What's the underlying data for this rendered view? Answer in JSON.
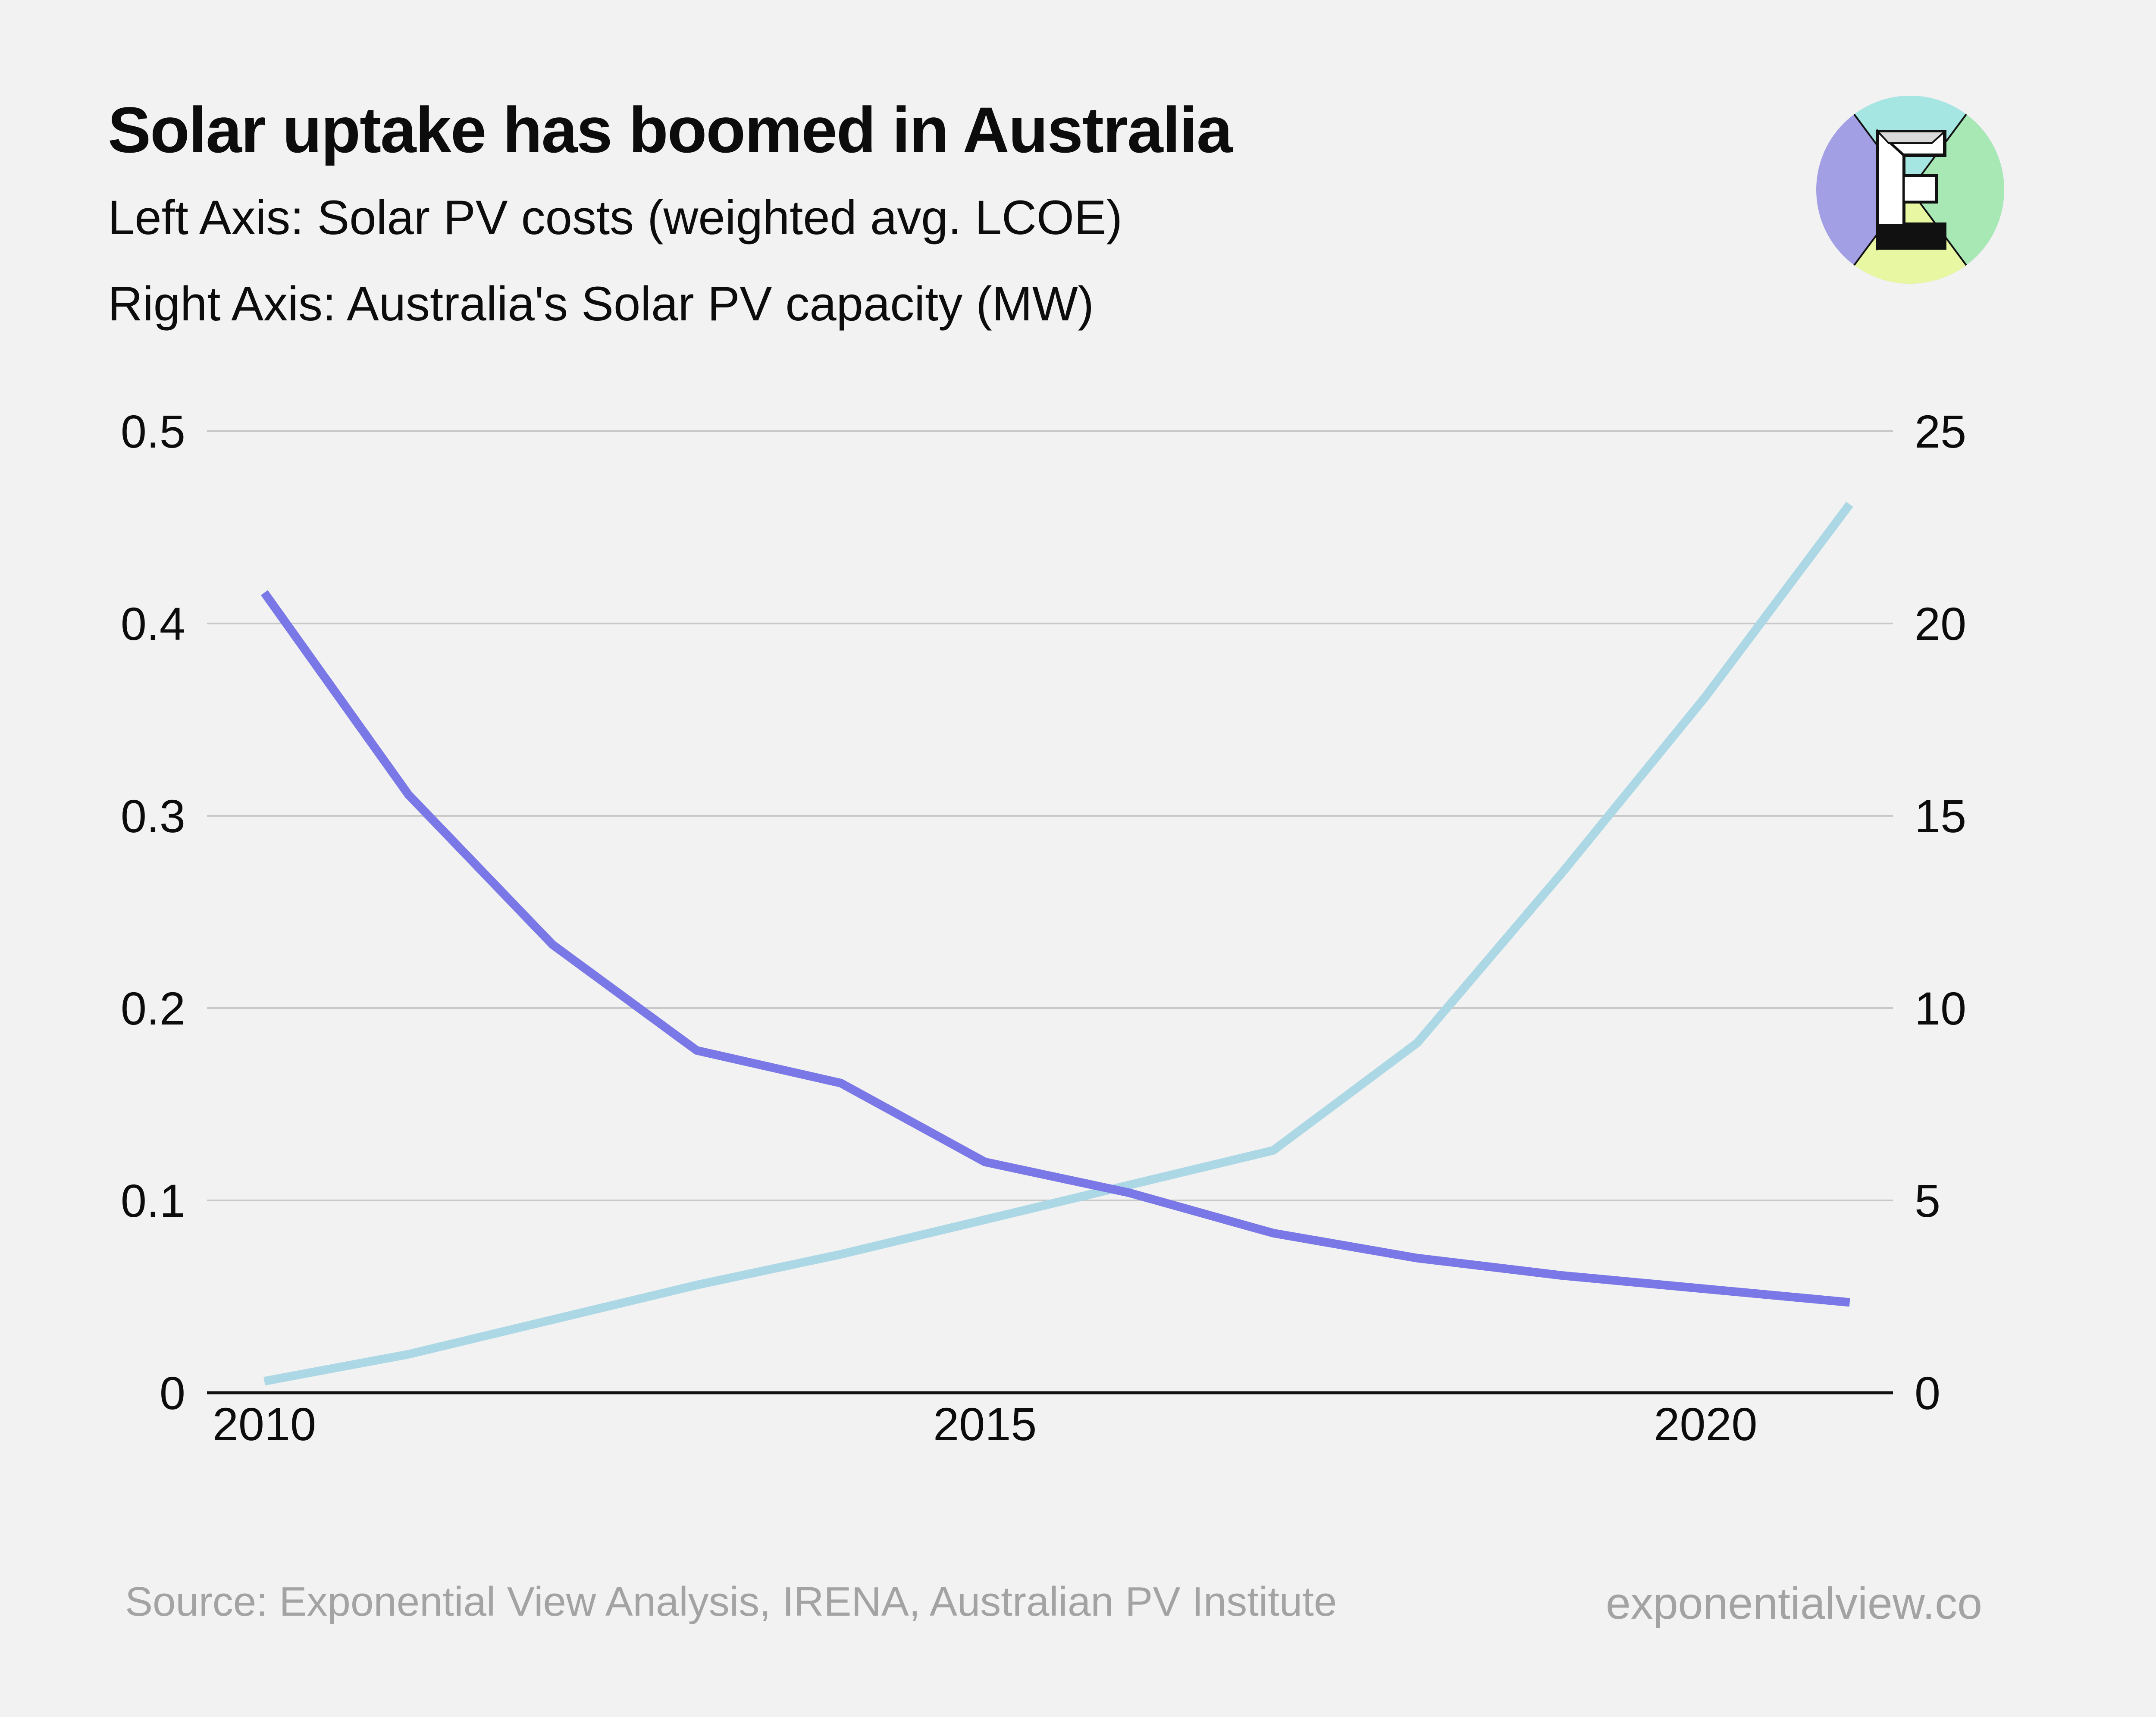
{
  "title": "Solar uptake has boomed in Australia",
  "subtitle_left": "Left Axis: Solar PV costs (weighted avg. LCOE)",
  "subtitle_right": "Right Axis: Australia's Solar PV capacity (MW)",
  "source": "Source: Exponential View Analysis, IRENA, Australian PV Institute",
  "brand_url": "exponentialview.co",
  "logo_letter": "E",
  "colors": {
    "cost_line": "#7a78e6",
    "capacity_line": "#acd8e6",
    "grid": "#c8c8c8",
    "axis": "#111111",
    "background": "#f2f2f2",
    "logo_purple": "#a39fe4",
    "logo_cyan": "#a6e6e2",
    "logo_green": "#a7e8b5",
    "logo_yellow": "#e8f7a2"
  },
  "chart_data": {
    "type": "line",
    "x": [
      2010,
      2011,
      2012,
      2013,
      2014,
      2015,
      2016,
      2017,
      2018,
      2019,
      2020,
      2021
    ],
    "xticks": [
      "2010",
      "2015",
      "2020"
    ],
    "xlim": [
      2010,
      2021.3
    ],
    "left_axis": {
      "ylim": [
        0,
        0.5
      ],
      "ticks": [
        "0",
        "0.1",
        "0.2",
        "0.3",
        "0.4",
        "0.5"
      ]
    },
    "right_axis": {
      "ylim": [
        0,
        25
      ],
      "ticks": [
        "0",
        "5",
        "10",
        "15",
        "20",
        "25"
      ]
    },
    "grid": true,
    "series": [
      {
        "name": "Solar PV costs (weighted avg. LCOE)",
        "axis": "left",
        "values": [
          0.416,
          0.311,
          0.233,
          0.178,
          0.161,
          0.12,
          0.104,
          0.083,
          0.07,
          0.061,
          0.054,
          0.047
        ]
      },
      {
        "name": "Australia's Solar PV capacity (MW)",
        "axis": "right",
        "values": [
          0.3,
          1.0,
          1.9,
          2.8,
          3.6,
          4.5,
          5.4,
          6.3,
          9.1,
          13.5,
          18.1,
          23.1
        ]
      }
    ]
  }
}
